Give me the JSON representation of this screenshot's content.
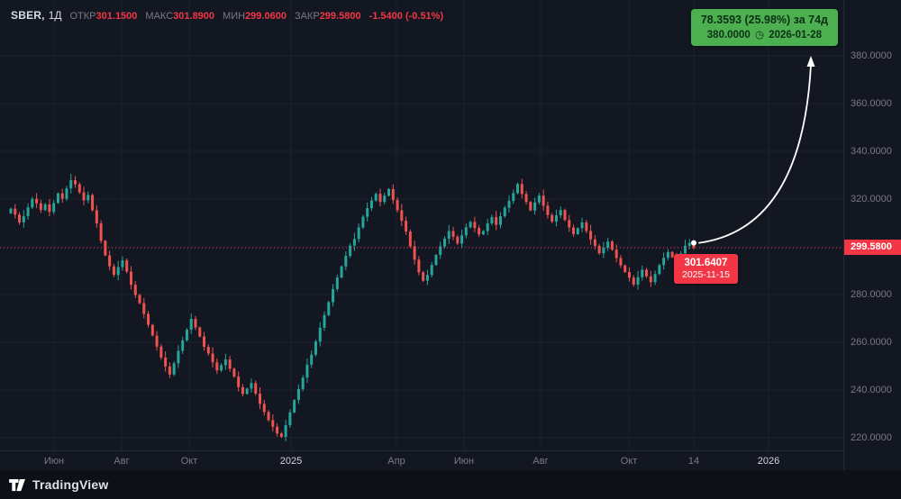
{
  "legend": {
    "symbol": "SBER,",
    "interval": "1Д",
    "open_label": "ОТКР",
    "open_value": "301.1500",
    "high_label": "МАКС",
    "high_value": "301.8900",
    "low_label": "МИН",
    "low_value": "299.0600",
    "close_label": "ЗАКР",
    "close_value": "299.5800",
    "change": "-1.5400 (-0.51%)"
  },
  "projection_label": {
    "line1": "78.3593 (25.98%) за 74д",
    "price": "380.0000",
    "clock_icon": "◷",
    "date": "2026-01-28"
  },
  "point_label": {
    "price": "301.6407",
    "date": "2025-11-15"
  },
  "price_badge": "299.5800",
  "footer": {
    "brand": "TradingView"
  },
  "colors": {
    "background": "#131722",
    "up": "#26a69a",
    "down": "#ef5350",
    "accent_red": "#f23645",
    "grid": "#1d2230",
    "axis_text": "#787b86",
    "axis_text_major": "#d1d4dc",
    "projection_green": "#4caf50",
    "white": "#ffffff"
  },
  "chart_data": {
    "type": "candlestick",
    "symbol": "SBER",
    "interval": "1Д",
    "ylim": [
      215,
      393
    ],
    "price_gridlines": [
      380,
      360,
      340,
      320,
      300,
      280,
      260,
      240,
      220
    ],
    "price_axis_labels": [
      {
        "value": 380,
        "label": "380.0000"
      },
      {
        "value": 360,
        "label": "360.0000"
      },
      {
        "value": 340,
        "label": "340.0000"
      },
      {
        "value": 320,
        "label": "320.0000"
      },
      {
        "value": 280,
        "label": "280.0000"
      },
      {
        "value": 260,
        "label": "260.0000"
      },
      {
        "value": 240,
        "label": "240.0000"
      },
      {
        "value": 220,
        "label": "220.0000"
      }
    ],
    "time_ticks": [
      {
        "label": "Июн",
        "pct": 6.0,
        "major": false
      },
      {
        "label": "Авг",
        "pct": 13.5,
        "major": false
      },
      {
        "label": "Окт",
        "pct": 21.0,
        "major": false
      },
      {
        "label": "2025",
        "pct": 32.3,
        "major": true
      },
      {
        "label": "Апр",
        "pct": 44.0,
        "major": false
      },
      {
        "label": "Июн",
        "pct": 51.5,
        "major": false
      },
      {
        "label": "Авг",
        "pct": 60.0,
        "major": false
      },
      {
        "label": "Окт",
        "pct": 69.8,
        "major": false
      },
      {
        "label": "14",
        "pct": 77.0,
        "major": false
      },
      {
        "label": "2026",
        "pct": 85.3,
        "major": true
      }
    ],
    "first_open": 314.0,
    "last_close": 299.58,
    "closes": [
      316.0,
      313.5,
      310.2,
      312.8,
      316.5,
      320.1,
      318.2,
      315.4,
      317.8,
      314.6,
      318.3,
      322.4,
      320.1,
      324.5,
      327.9,
      326.2,
      322.8,
      319.5,
      321.7,
      315.3,
      309.8,
      302.5,
      296.4,
      291.8,
      288.2,
      291.5,
      294.3,
      289.6,
      284.1,
      279.8,
      276.4,
      271.9,
      267.3,
      262.8,
      258.2,
      253.6,
      249.9,
      246.5,
      251.2,
      256.4,
      260.8,
      265.3,
      269.8,
      266.2,
      262.4,
      258.1,
      255.3,
      251.6,
      248.2,
      250.4,
      252.8,
      248.9,
      245.6,
      241.2,
      238.4,
      240.6,
      242.9,
      238.5,
      234.2,
      230.8,
      227.4,
      224.6,
      221.8,
      220.4,
      225.3,
      230.6,
      235.8,
      240.4,
      245.2,
      250.6,
      254.8,
      260.3,
      266.1,
      271.4,
      276.8,
      282.3,
      287.1,
      291.8,
      296.2,
      300.5,
      303.3,
      308.1,
      312.6,
      316.2,
      319.4,
      322.2,
      318.8,
      321.4,
      324.2,
      319.6,
      315.3,
      310.9,
      306.4,
      300.2,
      294.6,
      289.3,
      285.8,
      288.2,
      292.4,
      296.6,
      300.2,
      303.4,
      306.6,
      304.2,
      301.4,
      304.8,
      308.2,
      310.4,
      307.9,
      305.2,
      306.6,
      309.8,
      312.4,
      309.2,
      312.8,
      316.4,
      319.2,
      322.5,
      326.3,
      322.1,
      318.8,
      315.2,
      318.6,
      321.4,
      317.2,
      313.3,
      310.6,
      313.2,
      315.4,
      311.2,
      308.1,
      305.3,
      307.8,
      310.2,
      306.6,
      303.1,
      300.4,
      297.3,
      299.6,
      302.2,
      298.8,
      295.3,
      292.2,
      289.4,
      287.1,
      284.2,
      287.3,
      290.4,
      287.6,
      285.2,
      288.6,
      292.3,
      295.4,
      297.8,
      295.6,
      293.8,
      297.2,
      300.4,
      301.6,
      299.58
    ]
  }
}
